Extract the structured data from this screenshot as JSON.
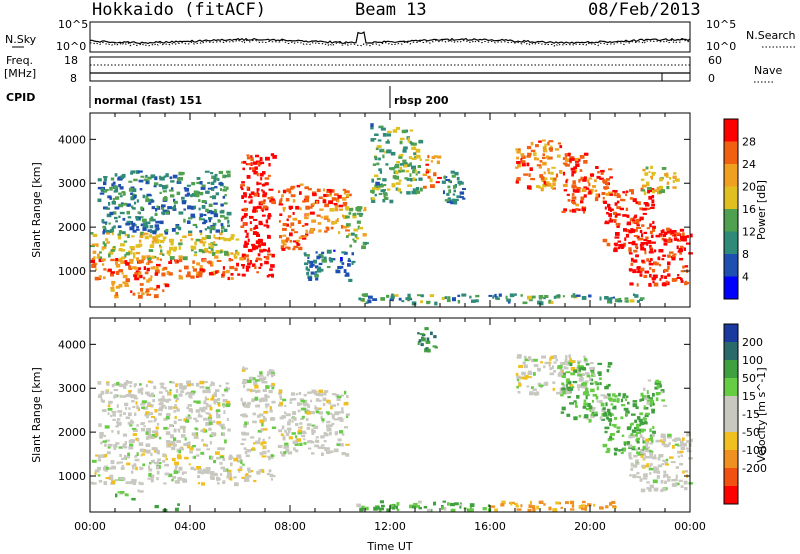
{
  "header": {
    "station": "Hokkaido (fitACF)",
    "beam": "Beam 13",
    "date": "08/Feb/2013"
  },
  "noise_panel": {
    "left_label": "N.Sky",
    "right_label": "N.Search",
    "ticks_left": [
      "10^5",
      "10^0"
    ],
    "ticks_right": [
      "10^5",
      "10^0"
    ]
  },
  "freq_panel": {
    "left_label_1": "Freq.",
    "left_label_2": "[MHz]",
    "right_label": "Nave",
    "ticks_left": [
      "18",
      "8"
    ],
    "ticks_right": [
      "60",
      "0"
    ]
  },
  "cpid_panel": {
    "label": "CPID",
    "modes": [
      {
        "name": "normal (fast) 151",
        "start_hour": 0
      },
      {
        "name": "rbsp 200",
        "start_hour": 12
      }
    ]
  },
  "chart_data": [
    {
      "type": "heatmap",
      "title": "",
      "xlabel": "",
      "ylabel": "Slant Range [km]",
      "colorbar_label": "Power [dB]",
      "colorbar_ticks": [
        "4",
        "8",
        "12",
        "16",
        "20",
        "24",
        "28"
      ],
      "xlim": [
        0,
        24
      ],
      "ylim": [
        180,
        4600
      ],
      "yticks": [
        1000,
        2000,
        3000,
        4000
      ],
      "regions": [
        {
          "t0": 0.0,
          "t1": 6.0,
          "r0": 850,
          "r1": 1300,
          "level": 26
        },
        {
          "t0": 0.0,
          "t1": 6.0,
          "r0": 1300,
          "r1": 1900,
          "level": 18
        },
        {
          "t0": 0.3,
          "t1": 5.5,
          "r0": 1900,
          "r1": 3300,
          "level": 10
        },
        {
          "t0": 0.8,
          "t1": 3.0,
          "r0": 450,
          "r1": 850,
          "level": 24
        },
        {
          "t0": 6.0,
          "t1": 7.3,
          "r0": 900,
          "r1": 3700,
          "level": 30
        },
        {
          "t0": 7.5,
          "t1": 8.6,
          "r0": 1500,
          "r1": 3000,
          "level": 26
        },
        {
          "t0": 8.5,
          "t1": 10.3,
          "r0": 1900,
          "r1": 2900,
          "level": 24
        },
        {
          "t0": 8.5,
          "t1": 10.5,
          "r0": 800,
          "r1": 1500,
          "level": 8
        },
        {
          "t0": 10.2,
          "t1": 11.0,
          "r0": 1500,
          "r1": 2500,
          "level": 16
        },
        {
          "t0": 11.2,
          "t1": 12.0,
          "r0": 2600,
          "r1": 4400,
          "level": 12
        },
        {
          "t0": 12.0,
          "t1": 13.2,
          "r0": 2800,
          "r1": 4300,
          "level": 14
        },
        {
          "t0": 13.3,
          "t1": 13.9,
          "r0": 2900,
          "r1": 3700,
          "level": 24
        },
        {
          "t0": 14.0,
          "t1": 14.9,
          "r0": 2600,
          "r1": 3300,
          "level": 10
        },
        {
          "t0": 10.6,
          "t1": 22.0,
          "r0": 300,
          "r1": 500,
          "level": 12
        },
        {
          "t0": 17.0,
          "t1": 18.8,
          "r0": 2900,
          "r1": 4000,
          "level": 24
        },
        {
          "t0": 18.8,
          "t1": 19.8,
          "r0": 2300,
          "r1": 3700,
          "level": 28
        },
        {
          "t0": 19.8,
          "t1": 20.8,
          "r0": 2600,
          "r1": 3400,
          "level": 26
        },
        {
          "t0": 20.5,
          "t1": 22.5,
          "r0": 1500,
          "r1": 2900,
          "level": 30
        },
        {
          "t0": 21.5,
          "t1": 24.0,
          "r0": 700,
          "r1": 2000,
          "level": 30
        },
        {
          "t0": 22.0,
          "t1": 23.5,
          "r0": 2800,
          "r1": 3400,
          "level": 18
        }
      ]
    },
    {
      "type": "heatmap",
      "title": "",
      "xlabel": "Time UT",
      "ylabel": "Slant Range [km]",
      "colorbar_label": "Velocity [m s^-1]",
      "colorbar_ticks": [
        "200",
        "100",
        "50",
        "15",
        "-15",
        "-50",
        "-100",
        "-200"
      ],
      "xlim": [
        0,
        24
      ],
      "ylim": [
        180,
        4600
      ],
      "yticks": [
        1000,
        2000,
        3000,
        4000
      ],
      "xticks": [
        "00:00",
        "04:00",
        "08:00",
        "12:00",
        "16:00",
        "20:00",
        "00:00"
      ],
      "regions": [
        {
          "t0": 0.0,
          "t1": 6.0,
          "r0": 850,
          "r1": 1500,
          "level": 0
        },
        {
          "t0": 0.3,
          "t1": 5.5,
          "r0": 1500,
          "r1": 3200,
          "level": 0
        },
        {
          "t0": 1.0,
          "t1": 2.0,
          "r0": 500,
          "r1": 700,
          "level": 30
        },
        {
          "t0": 2.5,
          "t1": 3.5,
          "r0": 250,
          "r1": 400,
          "level": 35
        },
        {
          "t0": 6.0,
          "t1": 7.3,
          "r0": 900,
          "r1": 3500,
          "level": 0
        },
        {
          "t0": 7.5,
          "t1": 10.3,
          "r0": 1500,
          "r1": 3000,
          "level": 0
        },
        {
          "t0": 10.5,
          "t1": 16.0,
          "r0": 250,
          "r1": 450,
          "level": 30
        },
        {
          "t0": 16.0,
          "t1": 21.0,
          "r0": 250,
          "r1": 450,
          "level": -60
        },
        {
          "t0": 13.0,
          "t1": 13.8,
          "r0": 3900,
          "r1": 4400,
          "level": 80
        },
        {
          "t0": 17.0,
          "t1": 19.8,
          "r0": 2900,
          "r1": 3800,
          "level": 0
        },
        {
          "t0": 18.8,
          "t1": 20.8,
          "r0": 2300,
          "r1": 3600,
          "level": 30
        },
        {
          "t0": 20.5,
          "t1": 22.5,
          "r0": 1500,
          "r1": 2900,
          "level": 35
        },
        {
          "t0": 21.5,
          "t1": 24.0,
          "r0": 700,
          "r1": 2000,
          "level": 0
        },
        {
          "t0": 22.0,
          "t1": 23.0,
          "r0": 2600,
          "r1": 3200,
          "level": 30
        }
      ]
    }
  ]
}
